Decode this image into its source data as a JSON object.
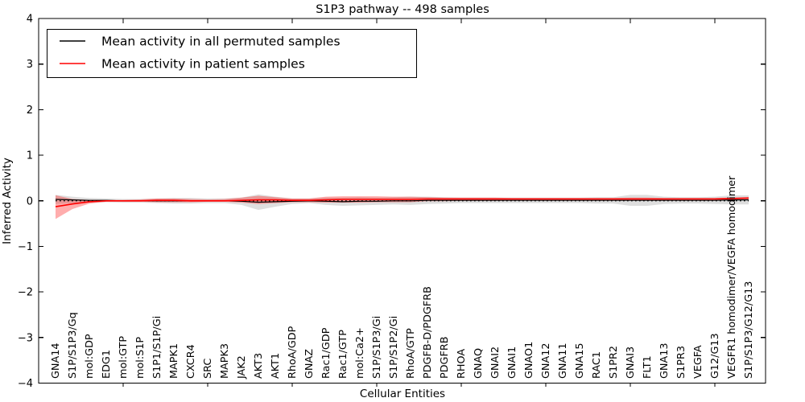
{
  "chart_data": {
    "type": "line",
    "title": "S1P3 pathway -- 498 samples",
    "xlabel": "Cellular Entities",
    "ylabel": "Inferred Activity",
    "ylim": [
      -4,
      4
    ],
    "yticks": [
      4,
      3,
      2,
      1,
      0,
      -1,
      -2,
      -3,
      -4
    ],
    "xlim": [
      0,
      43
    ],
    "xticks_top": [
      5,
      10,
      15,
      20,
      25,
      30,
      35,
      40
    ],
    "grid": false,
    "legend_position": "upper left",
    "zero_line": {
      "value": 0,
      "style": "dotted",
      "color": "#000000"
    },
    "categories": [
      "GNA14",
      "S1P/S1P3/Gq",
      "mol:GDP",
      "EDG1",
      "mol:GTP",
      "mol:S1P",
      "S1P1/S1P/Gi",
      "MAPK1",
      "CXCR4",
      "SRC",
      "MAPK3",
      "JAK2",
      "AKT3",
      "AKT1",
      "RhoA/GDP",
      "GNAZ",
      "Rac1/GDP",
      "Rac1/GTP",
      "mol:Ca2+",
      "S1P/S1P3/Gi",
      "S1P/S1P2/Gi",
      "RhoA/GTP",
      "PDGFB-D/PDGFRB",
      "PDGFRB",
      "RHOA",
      "GNAQ",
      "GNAI2",
      "GNAI1",
      "GNAO1",
      "GNA12",
      "GNA11",
      "GNA15",
      "RAC1",
      "S1PR2",
      "GNAI3",
      "FLT1",
      "GNA13",
      "S1PR3",
      "VEGFA",
      "G12/G13",
      "VEGFR1 homodimer/VEGFA homodimer",
      "S1P/S1P3/G12/G13"
    ],
    "series": [
      {
        "name": "Mean activity in all permuted samples",
        "color": "#000000",
        "values": [
          0.03,
          0.02,
          0.01,
          0.01,
          0.0,
          0.0,
          0.0,
          0.0,
          0.0,
          0.0,
          0.0,
          -0.01,
          -0.03,
          -0.02,
          -0.01,
          0.0,
          -0.01,
          -0.02,
          -0.01,
          -0.01,
          0.0,
          0.0,
          0.01,
          0.01,
          0.01,
          0.01,
          0.01,
          0.01,
          0.01,
          0.01,
          0.01,
          0.01,
          0.01,
          0.01,
          0.01,
          0.01,
          0.01,
          0.01,
          0.01,
          0.01,
          0.02,
          0.02
        ],
        "band": {
          "kind": "halfwidth",
          "color": "#000000",
          "opacity": 0.13,
          "halfwidths": [
            0.1,
            0.07,
            0.05,
            0.04,
            0.04,
            0.04,
            0.05,
            0.06,
            0.06,
            0.05,
            0.05,
            0.08,
            0.17,
            0.11,
            0.06,
            0.05,
            0.08,
            0.09,
            0.09,
            0.08,
            0.08,
            0.09,
            0.08,
            0.07,
            0.06,
            0.06,
            0.06,
            0.06,
            0.06,
            0.06,
            0.06,
            0.06,
            0.07,
            0.07,
            0.12,
            0.12,
            0.08,
            0.07,
            0.07,
            0.08,
            0.1,
            0.1
          ]
        }
      },
      {
        "name": "Mean activity in patient samples",
        "color": "#ff0000",
        "values": [
          -0.13,
          -0.07,
          -0.02,
          0.0,
          0.0,
          0.0,
          0.01,
          0.01,
          0.0,
          0.0,
          0.0,
          0.01,
          0.02,
          0.02,
          0.01,
          0.01,
          0.02,
          0.03,
          0.03,
          0.03,
          0.03,
          0.03,
          0.04,
          0.04,
          0.04,
          0.04,
          0.04,
          0.04,
          0.04,
          0.04,
          0.04,
          0.04,
          0.04,
          0.04,
          0.04,
          0.04,
          0.04,
          0.04,
          0.04,
          0.04,
          0.05,
          0.06
        ],
        "band": {
          "kind": "bounds",
          "color": "#ff0000",
          "opacity": 0.32,
          "upper": [
            0.12,
            0.04,
            0.02,
            0.02,
            0.02,
            0.03,
            0.05,
            0.05,
            0.04,
            0.03,
            0.04,
            0.07,
            0.11,
            0.08,
            0.05,
            0.05,
            0.09,
            0.1,
            0.1,
            0.1,
            0.09,
            0.09,
            0.08,
            0.07,
            0.07,
            0.07,
            0.07,
            0.06,
            0.06,
            0.06,
            0.06,
            0.06,
            0.06,
            0.06,
            0.07,
            0.07,
            0.06,
            0.06,
            0.06,
            0.06,
            0.07,
            0.08
          ],
          "lower": [
            -0.4,
            -0.18,
            -0.06,
            -0.02,
            -0.02,
            -0.02,
            -0.03,
            -0.03,
            -0.03,
            -0.02,
            -0.02,
            -0.04,
            -0.07,
            -0.05,
            -0.03,
            -0.03,
            -0.04,
            -0.04,
            -0.04,
            -0.03,
            -0.03,
            -0.03,
            -0.01,
            -0.01,
            0.0,
            0.0,
            0.0,
            0.01,
            0.01,
            0.01,
            0.01,
            0.01,
            0.01,
            0.01,
            0.01,
            0.01,
            0.01,
            0.02,
            0.02,
            0.02,
            0.02,
            0.03
          ]
        }
      }
    ]
  },
  "colors": {
    "background": "#ffffff",
    "frame": "#000000",
    "permuted_line": "#000000",
    "patient_line": "#ff0000"
  }
}
